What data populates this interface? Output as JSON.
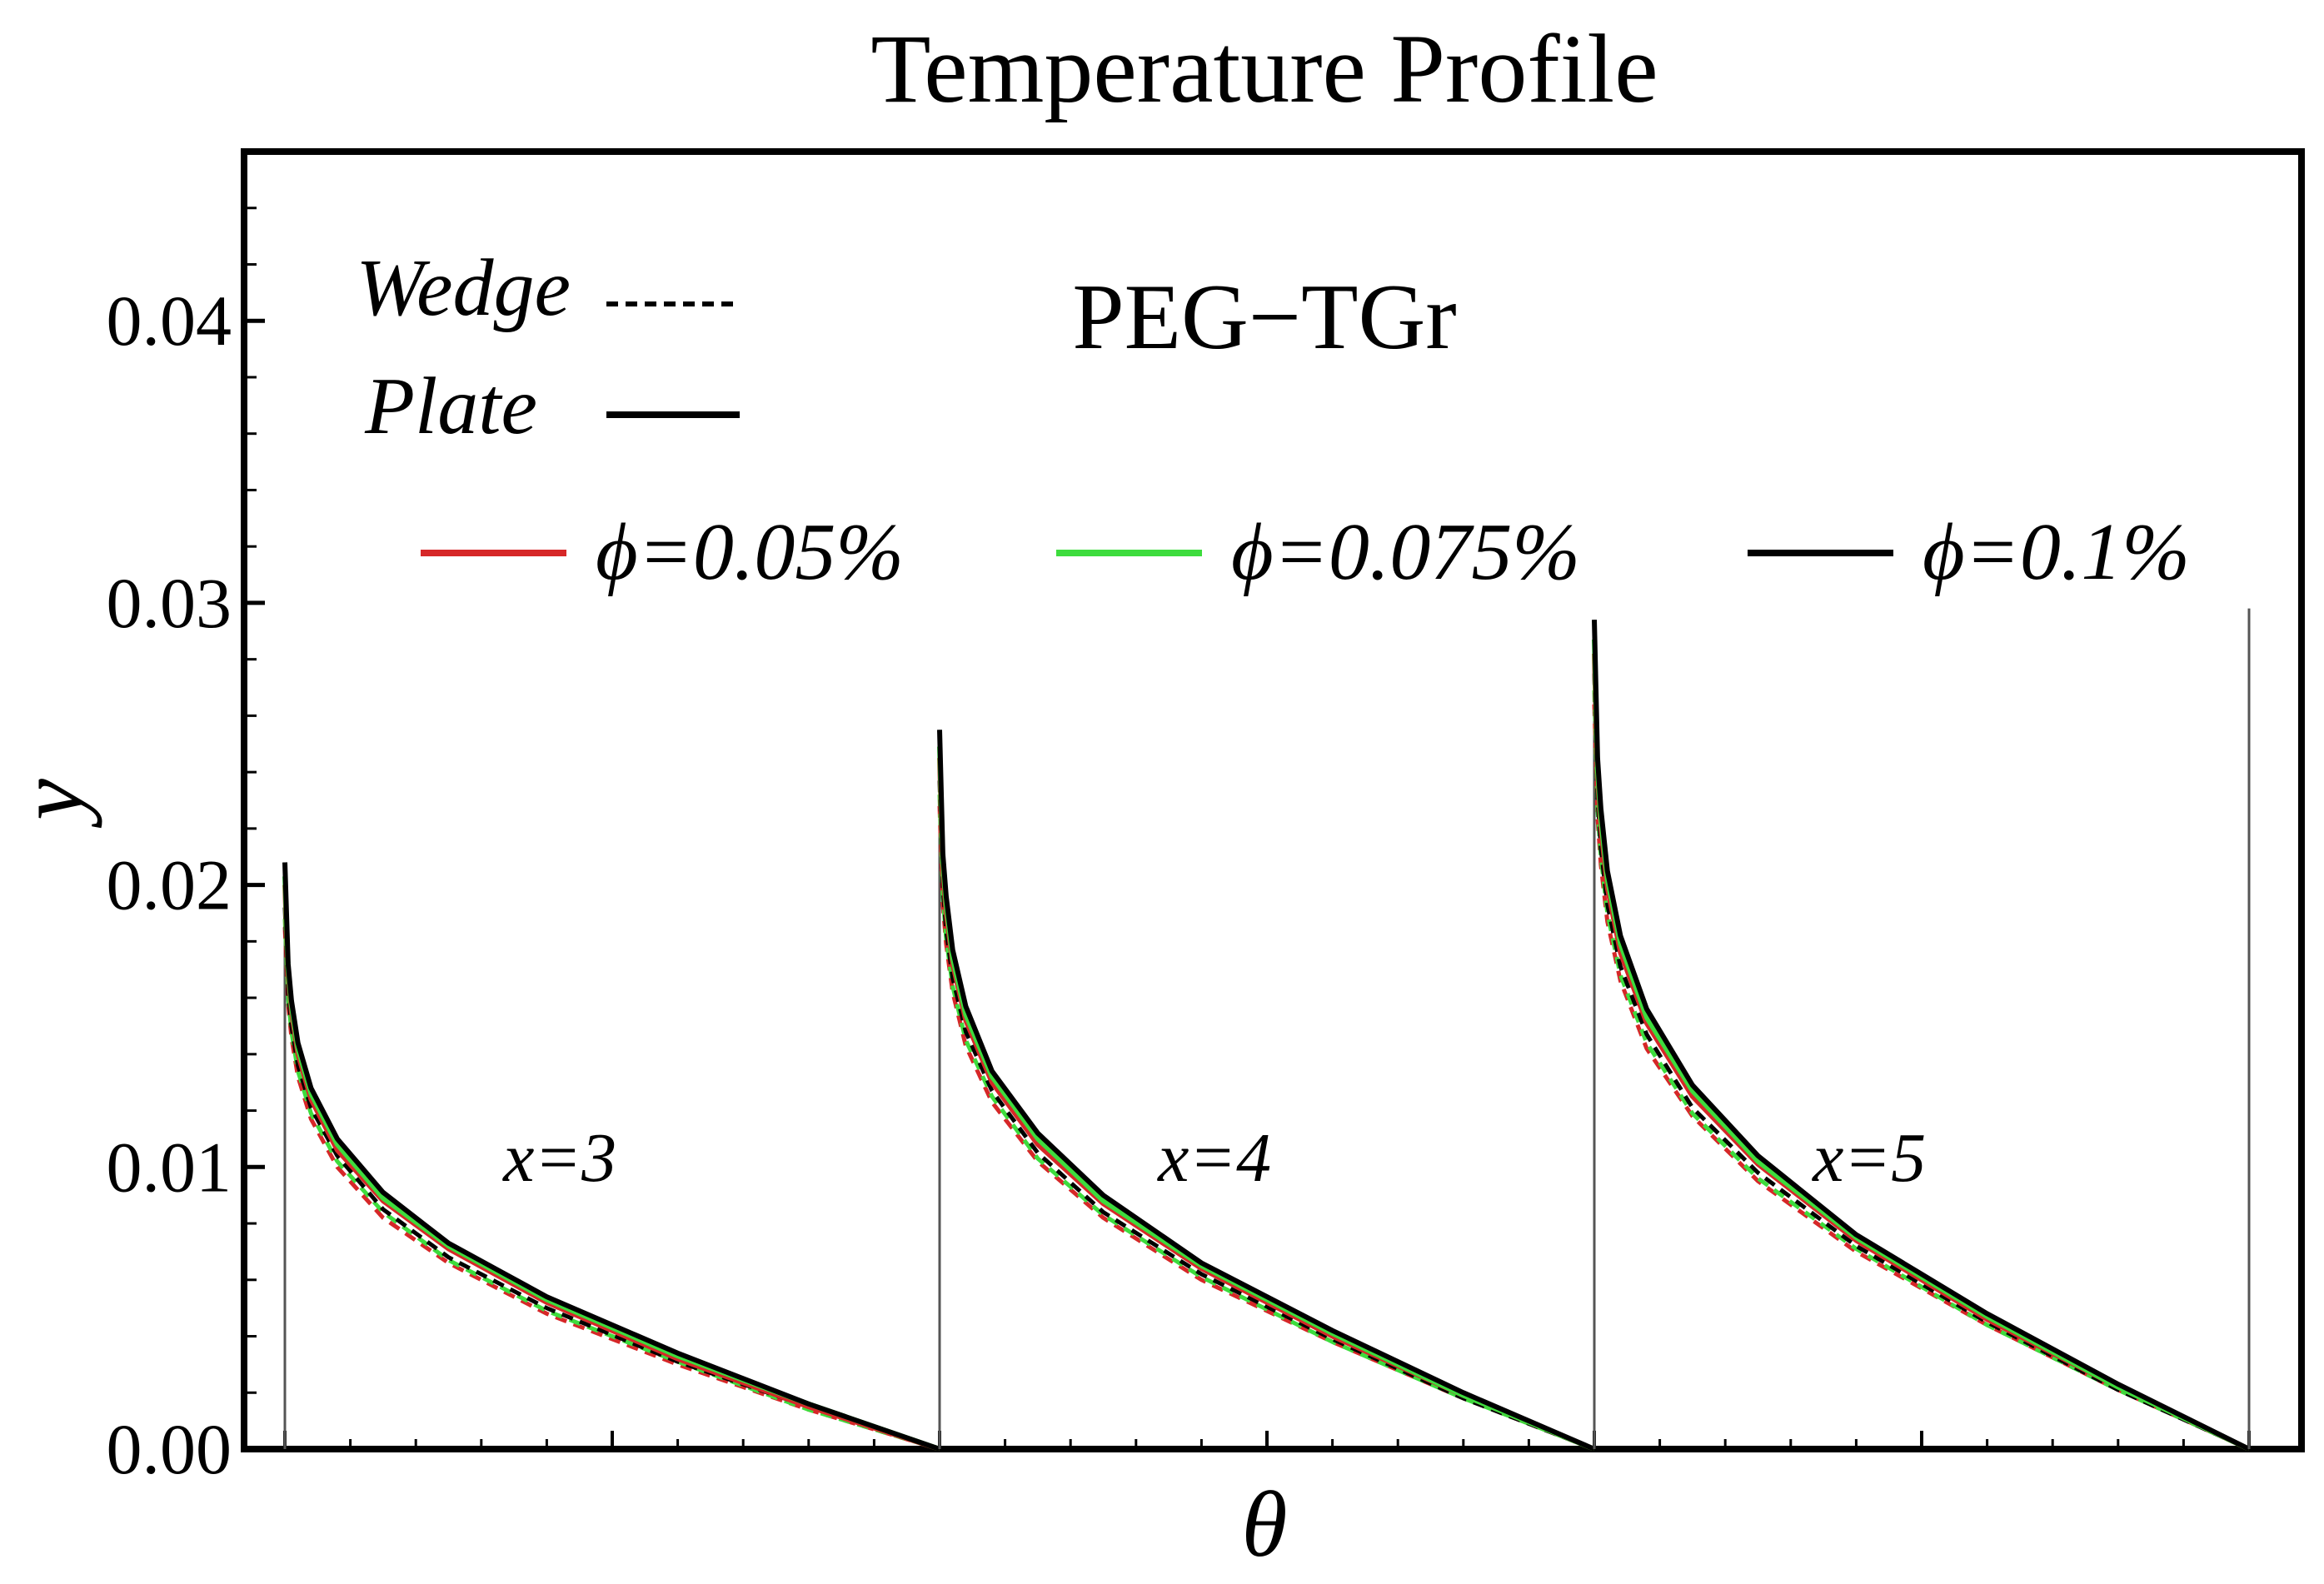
{
  "chart_data": {
    "type": "line",
    "title": "Temperature Profile",
    "xlabel": "θ",
    "ylabel": "y",
    "annotation": "PEG−TGr",
    "ylim": [
      0,
      0.046
    ],
    "yticks": [
      "0.00",
      "0.01",
      "0.02",
      "0.03",
      "0.04"
    ],
    "ytick_values": [
      0,
      0.01,
      0.02,
      0.03,
      0.04
    ],
    "xticks_labeled": false,
    "line_styles": [
      {
        "name": "Wedge",
        "dash": "dashed"
      },
      {
        "name": "Plate",
        "dash": "solid"
      }
    ],
    "series_legend": [
      {
        "name": "ϕ=0.05%",
        "color": "#d62728"
      },
      {
        "name": "ϕ=0.075%",
        "color": "#3ddc3d"
      },
      {
        "name": "ϕ=0.1%",
        "color": "#000000"
      }
    ],
    "panels": [
      {
        "label": "x=3",
        "theta": [
          0.0,
          0.005,
          0.01,
          0.02,
          0.04,
          0.08,
          0.15,
          0.25,
          0.4,
          0.6,
          0.8,
          1.0
        ],
        "y_plate": {
          "ϕ=0.05%": [
            0.02,
            0.0168,
            0.0155,
            0.014,
            0.0124,
            0.0106,
            0.0088,
            0.0071,
            0.0052,
            0.0032,
            0.0015,
            0.0
          ],
          "ϕ=0.075%": [
            0.0203,
            0.017,
            0.0157,
            0.0142,
            0.0126,
            0.0108,
            0.0089,
            0.0072,
            0.0053,
            0.0033,
            0.0016,
            0.0
          ],
          "ϕ=0.1%": [
            0.0208,
            0.0172,
            0.0159,
            0.0144,
            0.0128,
            0.011,
            0.0091,
            0.0073,
            0.0054,
            0.0034,
            0.0016,
            0.0
          ]
        },
        "y_wedge": {
          "ϕ=0.05%": [
            0.0185,
            0.0158,
            0.0146,
            0.0132,
            0.0117,
            0.01,
            0.0082,
            0.0066,
            0.0048,
            0.003,
            0.0014,
            0.0
          ],
          "ϕ=0.075%": [
            0.0188,
            0.016,
            0.0148,
            0.0134,
            0.0119,
            0.0102,
            0.0084,
            0.0067,
            0.0049,
            0.0031,
            0.0014,
            0.0
          ],
          "ϕ=0.1%": [
            0.0192,
            0.0162,
            0.015,
            0.0136,
            0.0121,
            0.0104,
            0.0085,
            0.0068,
            0.005,
            0.0031,
            0.0015,
            0.0
          ]
        }
      },
      {
        "label": "x=4",
        "theta": [
          0.0,
          0.005,
          0.01,
          0.02,
          0.04,
          0.08,
          0.15,
          0.25,
          0.4,
          0.6,
          0.8,
          1.0
        ],
        "y_plate": {
          "ϕ=0.05%": [
            0.0245,
            0.0205,
            0.019,
            0.0172,
            0.0152,
            0.013,
            0.0108,
            0.0087,
            0.0064,
            0.004,
            0.0019,
            0.0
          ],
          "ϕ=0.075%": [
            0.0249,
            0.0208,
            0.0193,
            0.0174,
            0.0154,
            0.0132,
            0.011,
            0.0088,
            0.0065,
            0.0041,
            0.0019,
            0.0
          ],
          "ϕ=0.1%": [
            0.0255,
            0.0211,
            0.0196,
            0.0177,
            0.0157,
            0.0134,
            0.0112,
            0.009,
            0.0066,
            0.0042,
            0.002,
            0.0
          ]
        },
        "y_wedge": {
          "ϕ=0.05%": [
            0.0228,
            0.0193,
            0.0179,
            0.0162,
            0.0143,
            0.0123,
            0.0102,
            0.0082,
            0.006,
            0.0038,
            0.0018,
            0.0
          ],
          "ϕ=0.075%": [
            0.0232,
            0.0196,
            0.0181,
            0.0164,
            0.0145,
            0.0125,
            0.0103,
            0.0083,
            0.0061,
            0.0038,
            0.0018,
            0.0
          ],
          "ϕ=0.1%": [
            0.0237,
            0.0199,
            0.0184,
            0.0167,
            0.0148,
            0.0127,
            0.0105,
            0.0084,
            0.0062,
            0.0039,
            0.0018,
            0.0
          ]
        }
      },
      {
        "label": "x=5",
        "theta": [
          0.0,
          0.005,
          0.01,
          0.02,
          0.04,
          0.08,
          0.15,
          0.25,
          0.4,
          0.6,
          0.8,
          1.0
        ],
        "y_plate": {
          "ϕ=0.05%": [
            0.0282,
            0.0238,
            0.022,
            0.0199,
            0.0176,
            0.0151,
            0.0125,
            0.0101,
            0.0074,
            0.0046,
            0.0022,
            0.0
          ],
          "ϕ=0.075%": [
            0.0287,
            0.0241,
            0.0223,
            0.0202,
            0.0179,
            0.0153,
            0.0127,
            0.0102,
            0.0075,
            0.0047,
            0.0022,
            0.0
          ],
          "ϕ=0.1%": [
            0.0294,
            0.0245,
            0.0227,
            0.0205,
            0.0182,
            0.0156,
            0.0129,
            0.0104,
            0.0076,
            0.0048,
            0.0023,
            0.0
          ]
        },
        "y_wedge": {
          "ϕ=0.05%": [
            0.0264,
            0.0224,
            0.0207,
            0.0187,
            0.0166,
            0.0142,
            0.0118,
            0.0095,
            0.007,
            0.0044,
            0.0021,
            0.0
          ],
          "ϕ=0.075%": [
            0.0269,
            0.0227,
            0.021,
            0.019,
            0.0168,
            0.0144,
            0.0119,
            0.0096,
            0.0071,
            0.0044,
            0.0021,
            0.0
          ],
          "ϕ=0.1%": [
            0.0275,
            0.0231,
            0.0213,
            0.0193,
            0.0171,
            0.0147,
            0.0121,
            0.0098,
            0.0072,
            0.0045,
            0.0021,
            0.0
          ]
        }
      }
    ]
  }
}
